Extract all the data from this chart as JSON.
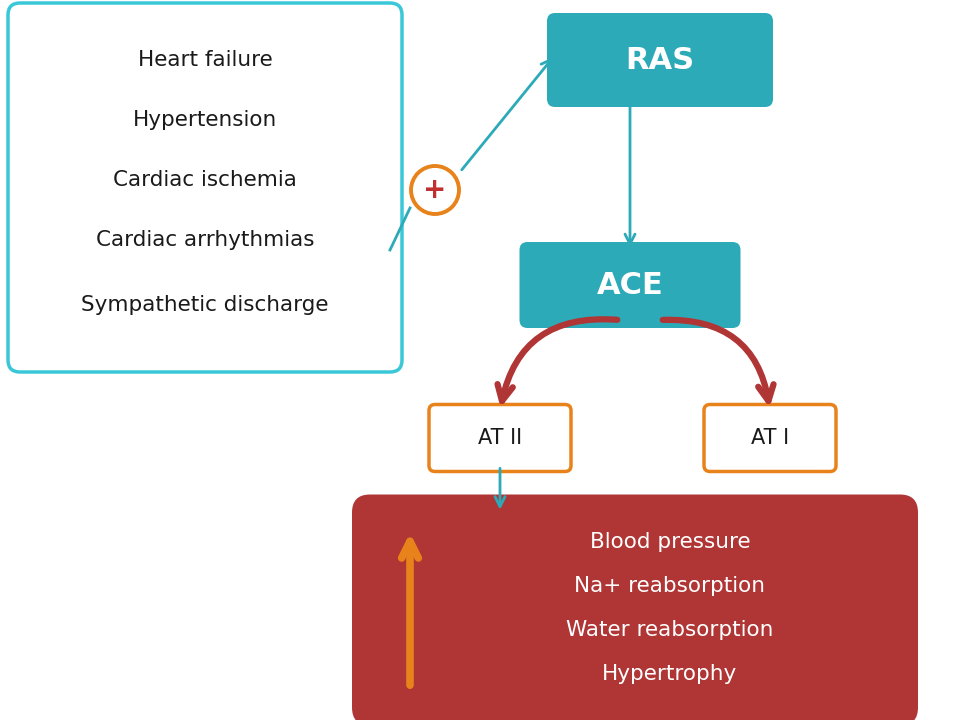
{
  "bg_color": "#ffffff",
  "teal_color": "#2daab8",
  "dark_red_color": "#b03535",
  "orange_color": "#e8821a",
  "box_left_border": "#3ac8d8",
  "left_box_items": [
    "Heart failure",
    "Hypertension",
    "Cardiac ischemia",
    "Cardiac arrhythmias",
    "Sympathetic discharge"
  ],
  "ras_label": "RAS",
  "ace_label": "ACE",
  "atii_label": "AT II",
  "ati_label": "AT I",
  "blood_pressure_lines": [
    "Blood pressure",
    "Na+ reabsorption",
    "Water reabsorption",
    "Hypertrophy"
  ],
  "plus_red": "#c03030"
}
